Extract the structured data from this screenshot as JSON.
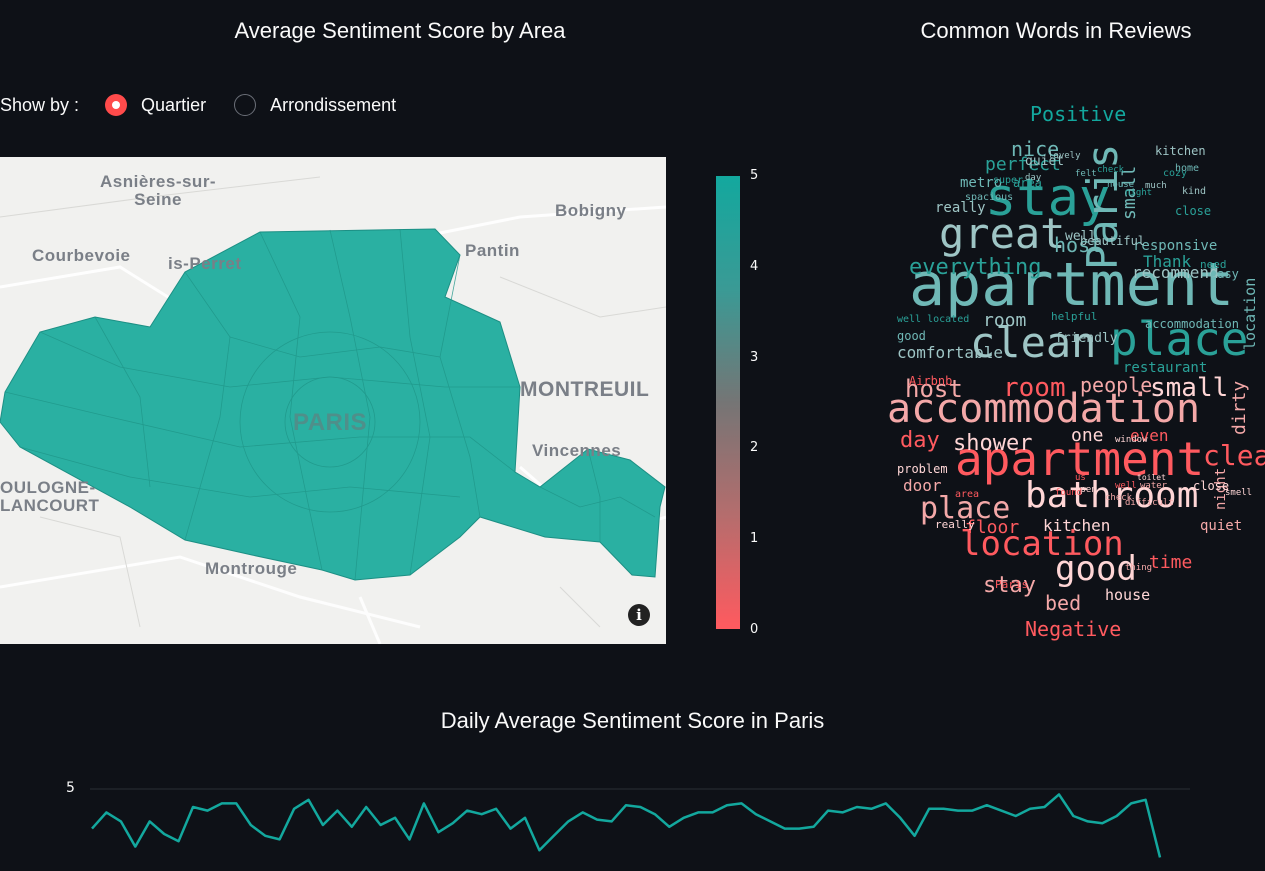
{
  "titles": {
    "map": "Average Sentiment Score by Area",
    "wordcloud": "Common Words in Reviews",
    "daily": "Daily Average Sentiment Score in Paris"
  },
  "radio": {
    "label": "Show by :",
    "options": [
      "Quartier",
      "Arrondissement"
    ],
    "selected": "Quartier"
  },
  "map": {
    "places": [
      "Asnières-sur-\nSeine",
      "Bobigny",
      "Courbevoie",
      "is-Perret",
      "Pantin",
      "MONTREUIL",
      "Vincennes",
      "PARIS",
      "Montrouge",
      "OULOGNE-\nLANCOURT"
    ],
    "fill_color": "#2ab0a2"
  },
  "colorbar": {
    "ticks": [
      "5",
      "4",
      "3",
      "2",
      "1",
      "0"
    ],
    "top_color": "#13a89e",
    "bottom_color": "#ff5a5f"
  },
  "wordcloud": {
    "positive_label": "Positive",
    "negative_label": "Negative",
    "positive_words": [
      "apartment",
      "stay",
      "great",
      "Paris",
      "place",
      "clean",
      "nice",
      "perfect",
      "quiet",
      "metro",
      "area",
      "really",
      "host",
      "everything",
      "well",
      "responsive",
      "Thank",
      "recommend",
      "small",
      "close",
      "room",
      "accommodation",
      "restaurant",
      "comfortable",
      "good",
      "well located",
      "friendly",
      "location",
      "helpful",
      "beautiful",
      "easy",
      "need",
      "kind",
      "home",
      "cozy",
      "kitchen",
      "spacious",
      "super",
      "lovely",
      "felt",
      "check",
      "day",
      "house",
      "night",
      "much"
    ],
    "negative_words": [
      "apartment",
      "accommodation",
      "bathroom",
      "location",
      "place",
      "good",
      "room",
      "host",
      "small",
      "clean",
      "stay",
      "shower",
      "day",
      "people",
      "one",
      "even",
      "dirty",
      "kitchen",
      "floor",
      "bed",
      "house",
      "time",
      "door",
      "problem",
      "Airbnb",
      "night",
      "really",
      "Paris",
      "thing",
      "window",
      "well",
      "water",
      "close",
      "us",
      "quiet",
      "open",
      "found",
      "difficult",
      "toilet",
      "area",
      "check",
      "smell"
    ],
    "positive_color": "#13a89e",
    "negative_color": "#ff5a5f"
  },
  "chart_data": {
    "type": "line",
    "title": "Daily Average Sentiment Score in Paris",
    "y_ticks": [
      "5"
    ],
    "ylim": [
      4,
      5.5
    ],
    "series": [
      {
        "color": "#13a89e",
        "values": [
          4.78,
          4.87,
          4.82,
          4.68,
          4.82,
          4.75,
          4.71,
          4.9,
          4.88,
          4.92,
          4.92,
          4.8,
          4.74,
          4.72,
          4.89,
          4.94,
          4.8,
          4.88,
          4.79,
          4.9,
          4.8,
          4.84,
          4.72,
          4.92,
          4.76,
          4.81,
          4.88,
          4.86,
          4.89,
          4.78,
          4.84,
          4.66,
          4.74,
          4.82,
          4.87,
          4.83,
          4.82,
          4.91,
          4.9,
          4.86,
          4.79,
          4.84,
          4.87,
          4.87,
          4.91,
          4.92,
          4.86,
          4.82,
          4.78,
          4.78,
          4.79,
          4.88,
          4.87,
          4.9,
          4.89,
          4.92,
          4.84,
          4.74,
          4.89,
          4.89,
          4.88,
          4.88,
          4.91,
          4.88,
          4.85,
          4.89,
          4.9,
          4.97,
          4.85,
          4.82,
          4.81,
          4.85,
          4.92,
          4.94,
          4.62
        ]
      }
    ]
  }
}
